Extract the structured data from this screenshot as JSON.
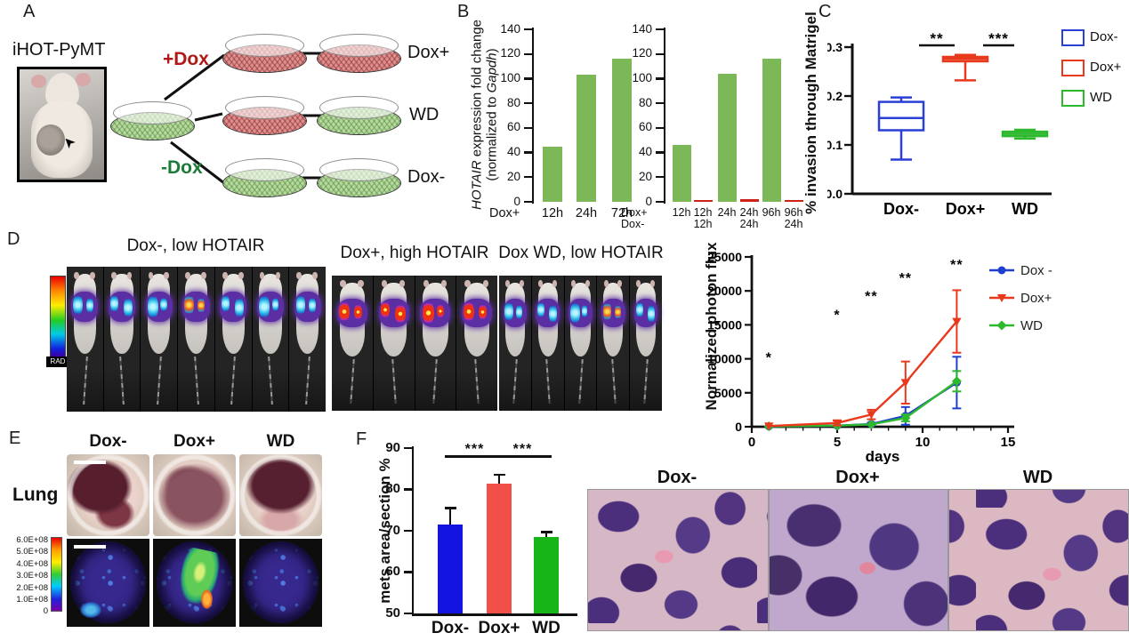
{
  "panelA": {
    "label": "A",
    "photo_caption": "iHOT-PyMT",
    "branch_top_label": "+Dox",
    "branch_bottom_label": "-Dox",
    "row_labels": [
      "Dox+",
      "WD",
      "Dox-"
    ],
    "colors": {
      "plus_dox_text": "#b01818",
      "minus_dox_text": "#1d7a38"
    }
  },
  "panelB": {
    "label": "B",
    "ylabel_italic1": "HOTAIR",
    "ylabel_rest1": " expression fold change",
    "ylabel_pre2": "(normalized to ",
    "ylabel_italic2": "Gapdh",
    "ylabel_post2": ")"
  },
  "panelC": {
    "label": "C",
    "ylabel": "% invasion through Matrigel",
    "legend": [
      {
        "label": "Dox-",
        "color": "#2a3fd4"
      },
      {
        "label": "Dox+",
        "color": "#e8391d"
      },
      {
        "label": "WD",
        "color": "#2eb82e"
      }
    ]
  },
  "panelD": {
    "label": "D",
    "groups": [
      {
        "title": "Dox-, low HOTAIR",
        "mice": 7,
        "signal": "low"
      },
      {
        "title": "Dox+, high HOTAIR",
        "mice": 4,
        "signal": "high"
      },
      {
        "title": "Dox WD, low HOTAIR",
        "mice": 5,
        "signal": "low"
      }
    ],
    "scale_label": "RAD",
    "ylabel": "Normalized photon flux",
    "xlabel": "days"
  },
  "panelE": {
    "label": "E",
    "column_labels": [
      "Dox-",
      "Dox+",
      "WD"
    ],
    "row_label": "Lung",
    "scale_ticks": [
      "6.0E+08",
      "5.0E+08",
      "4.0E+08",
      "3.0E+08",
      "2.0E+08",
      "1.0E+08",
      "0"
    ]
  },
  "panelF": {
    "label": "F",
    "ylabel": "mets area/section %",
    "hist_labels": [
      "Dox-",
      "Dox+",
      "WD"
    ]
  },
  "chart_data": [
    {
      "id": "hotair_induction",
      "type": "bar",
      "ylabel": "HOTAIR expression fold change (normalized to Gapdh)",
      "ylim": [
        0,
        140
      ],
      "yticks": [
        0,
        20,
        40,
        60,
        80,
        100,
        120,
        140
      ],
      "row_labels": [
        "Dox+"
      ],
      "categories": [
        "12h",
        "24h",
        "72h"
      ],
      "values": [
        45,
        103,
        116
      ],
      "colors": [
        "#7cb857",
        "#7cb857",
        "#7cb857"
      ]
    },
    {
      "id": "hotair_withdrawal",
      "type": "bar",
      "ylim": [
        0,
        140
      ],
      "yticks": [
        0,
        20,
        40,
        60,
        80,
        100,
        120,
        140
      ],
      "row_labels": [
        "Dox+",
        "Dox-"
      ],
      "categories_row1": [
        "12h",
        "12h",
        "24h",
        "24h",
        "96h",
        "96h"
      ],
      "categories_row2": [
        "",
        "12h",
        "",
        "24h",
        "",
        "24h"
      ],
      "values": [
        46,
        1,
        104,
        2,
        116,
        1
      ],
      "colors": [
        "#7cb857",
        "#cc2218",
        "#7cb857",
        "#cc2218",
        "#7cb857",
        "#cc2218"
      ]
    },
    {
      "id": "matrigel_invasion",
      "type": "box",
      "ylabel": "% invasion through Matrigel",
      "ylim": [
        0,
        0.3
      ],
      "yticks": [
        0,
        0.1,
        0.2,
        0.3
      ],
      "ytick_labels": [
        "0.0",
        "0.1",
        "0.2",
        "0.3"
      ],
      "categories": [
        "Dox-",
        "Dox+",
        "WD"
      ],
      "boxes": [
        {
          "label": "Dox-",
          "color": "#2a3fd4",
          "min": 0.07,
          "q1": 0.13,
          "median": 0.155,
          "q3": 0.188,
          "max": 0.197
        },
        {
          "label": "Dox+",
          "color": "#e8391d",
          "min": 0.232,
          "q1": 0.271,
          "median": 0.276,
          "q3": 0.28,
          "max": 0.284
        },
        {
          "label": "WD",
          "color": "#2eb82e",
          "min": 0.113,
          "q1": 0.118,
          "median": 0.1225,
          "q3": 0.127,
          "max": 0.131
        }
      ],
      "significance": [
        {
          "between": [
            0,
            1
          ],
          "label": "**"
        },
        {
          "between": [
            1,
            2
          ],
          "label": "***"
        }
      ]
    },
    {
      "id": "photon_flux",
      "type": "line",
      "ylabel": "Normalized photon flux",
      "xlabel": "days",
      "ylim": [
        0,
        25000
      ],
      "yticks": [
        0,
        5000,
        10000,
        15000,
        20000,
        25000
      ],
      "xlim": [
        0,
        15
      ],
      "xticks": [
        0,
        5,
        10,
        15
      ],
      "x": [
        1,
        5,
        7,
        9,
        12
      ],
      "series": [
        {
          "name": "Dox -",
          "color": "#1f3fd0",
          "marker": "circle",
          "values": [
            60,
            150,
            400,
            1600,
            6500
          ],
          "errors": [
            60,
            100,
            200,
            1300,
            3800
          ]
        },
        {
          "name": "Dox+",
          "color": "#e8391d",
          "marker": "triangle-down",
          "values": [
            100,
            550,
            1800,
            6500,
            15500
          ],
          "errors": [
            80,
            350,
            700,
            3100,
            4600
          ]
        },
        {
          "name": "WD",
          "color": "#2eb82e",
          "marker": "diamond",
          "values": [
            60,
            150,
            350,
            1300,
            6700
          ],
          "errors": [
            50,
            80,
            150,
            500,
            1500
          ]
        }
      ],
      "annotations": [
        {
          "label": "*",
          "x": 1,
          "y": 9500
        },
        {
          "label": "*",
          "x": 5,
          "y": 15800
        },
        {
          "label": "**",
          "x": 7,
          "y": 18500
        },
        {
          "label": "**",
          "x": 9,
          "y": 21200
        },
        {
          "label": "**",
          "x": 12,
          "y": 23200
        }
      ]
    },
    {
      "id": "mets_area",
      "type": "bar",
      "ylabel": "mets area/section %",
      "ylim": [
        50,
        90
      ],
      "yticks": [
        50,
        60,
        70,
        80,
        90
      ],
      "categories": [
        "Dox-",
        "Dox+",
        "WD"
      ],
      "values": [
        71.5,
        81.5,
        68.5
      ],
      "errors": [
        4.0,
        2.0,
        1.2
      ],
      "colors": [
        "#1414e0",
        "#f05048",
        "#17b517"
      ],
      "significance": [
        {
          "between": [
            0,
            1
          ],
          "label": "***"
        },
        {
          "between": [
            1,
            2
          ],
          "label": "***"
        }
      ]
    }
  ]
}
